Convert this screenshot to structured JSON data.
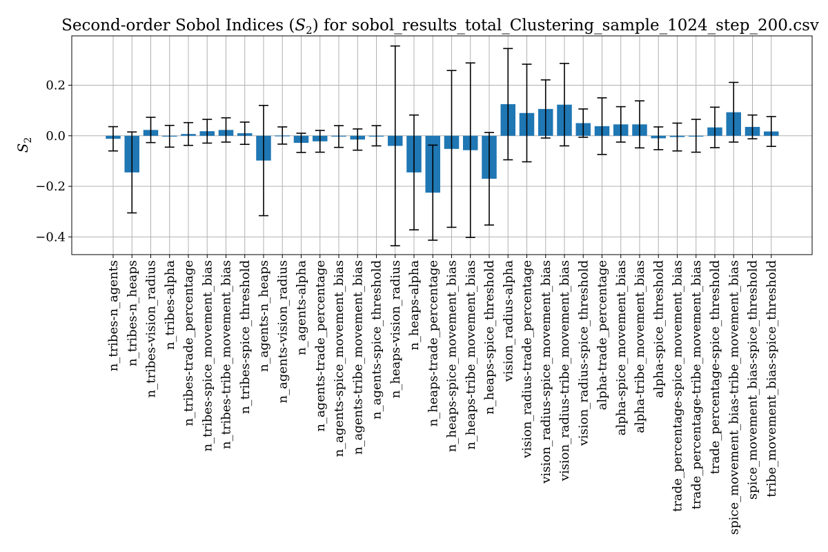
{
  "chart_data": {
    "type": "bar",
    "title_prefix": "Second-order Sobol Indices (",
    "title_symbol": "S",
    "title_subscript": "2",
    "title_suffix": ") for sobol_results_total_Clustering_sample_1024_step_200.csv",
    "ylabel_symbol": "S",
    "ylabel_subscript": "2",
    "xlabel": "",
    "ylim": [
      -0.47,
      0.395
    ],
    "yticks": [
      -0.4,
      -0.2,
      0.0,
      0.2
    ],
    "ytick_labels": [
      "−0.4",
      "−0.2",
      "0.0",
      "0.2"
    ],
    "grid": true,
    "categories": [
      "n_tribes-n_agents",
      "n_tribes-n_heaps",
      "n_tribes-vision_radius",
      "n_tribes-alpha",
      "n_tribes-trade_percentage",
      "n_tribes-spice_movement_bias",
      "n_tribes-tribe_movement_bias",
      "n_tribes-spice_threshold",
      "n_agents-n_heaps",
      "n_agents-vision_radius",
      "n_agents-alpha",
      "n_agents-trade_percentage",
      "n_agents-spice_movement_bias",
      "n_agents-tribe_movement_bias",
      "n_agents-spice_threshold",
      "n_heaps-vision_radius",
      "n_heaps-alpha",
      "n_heaps-trade_percentage",
      "n_heaps-spice_movement_bias",
      "n_heaps-tribe_movement_bias",
      "n_heaps-spice_threshold",
      "vision_radius-alpha",
      "vision_radius-trade_percentage",
      "vision_radius-spice_movement_bias",
      "vision_radius-tribe_movement_bias",
      "vision_radius-spice_threshold",
      "alpha-trade_percentage",
      "alpha-spice_movement_bias",
      "alpha-tribe_movement_bias",
      "alpha-spice_threshold",
      "trade_percentage-spice_movement_bias",
      "trade_percentage-tribe_movement_bias",
      "trade_percentage-spice_threshold",
      "spice_movement_bias-tribe_movement_bias",
      "spice_movement_bias-spice_threshold",
      "tribe_movement_bias-spice_threshold"
    ],
    "values": [
      -0.012,
      -0.145,
      0.023,
      -0.002,
      0.007,
      0.018,
      0.023,
      0.01,
      -0.098,
      0.001,
      -0.028,
      -0.022,
      -0.003,
      -0.015,
      0.0,
      -0.04,
      -0.145,
      -0.225,
      -0.052,
      -0.057,
      -0.17,
      0.125,
      0.09,
      0.106,
      0.123,
      0.05,
      0.038,
      0.045,
      0.045,
      -0.01,
      -0.005,
      0.0,
      0.033,
      0.093,
      0.035,
      0.017
    ],
    "error": [
      0.048,
      0.16,
      0.05,
      0.043,
      0.045,
      0.047,
      0.048,
      0.044,
      0.218,
      0.034,
      0.038,
      0.043,
      0.043,
      0.042,
      0.04,
      0.395,
      0.227,
      0.188,
      0.31,
      0.345,
      0.183,
      0.22,
      0.193,
      0.115,
      0.163,
      0.056,
      0.112,
      0.07,
      0.093,
      0.045,
      0.055,
      0.065,
      0.08,
      0.118,
      0.047,
      0.059
    ],
    "color": "#1f77b4"
  }
}
